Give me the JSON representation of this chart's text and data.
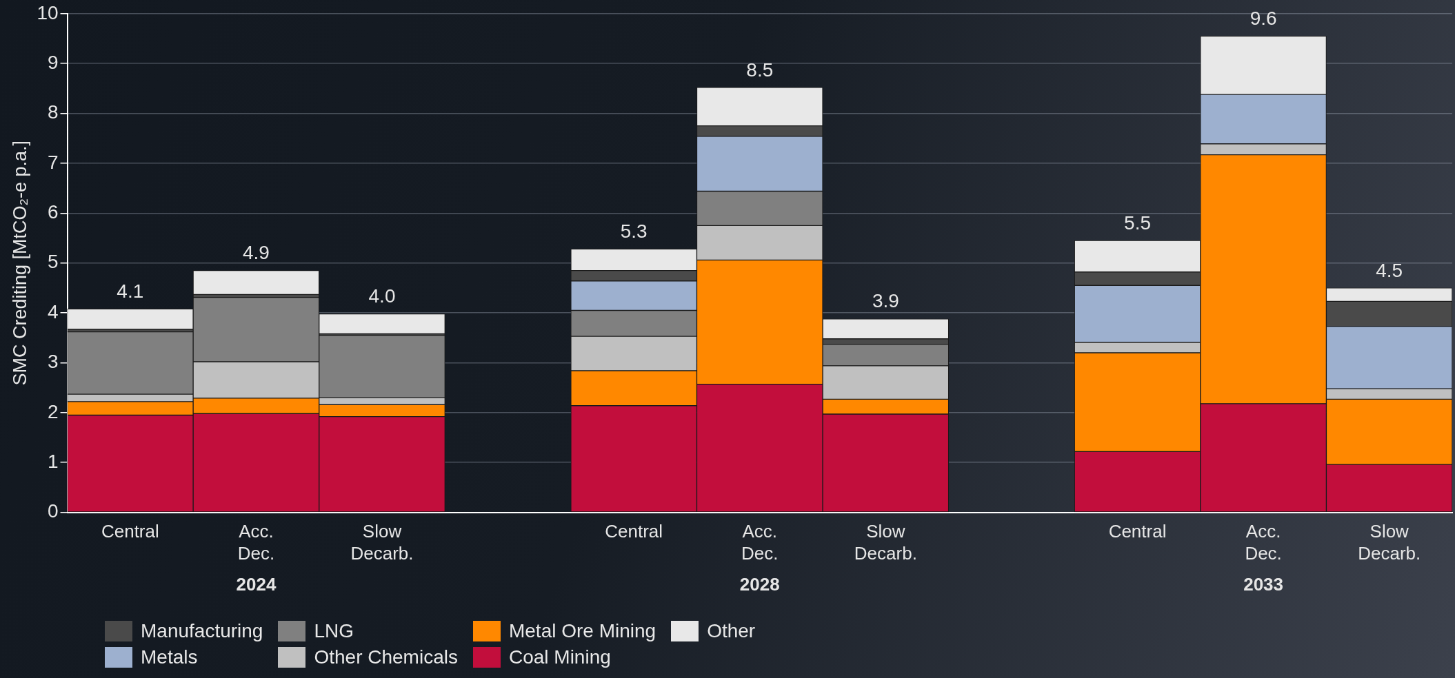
{
  "chart_data": {
    "type": "bar",
    "stacked": true,
    "ylabel": "SMC Crediting [MtCO₂-e p.a.]",
    "categories": [
      "Central",
      "Acc. Dec.",
      "Slow Decarb.",
      null,
      "Central",
      "Acc. Dec.",
      "Slow Decarb.",
      null,
      "Central",
      "Acc. Dec.",
      "Slow Decarb."
    ],
    "series": [
      {
        "name": "Coal Mining",
        "color": "#c20e3c",
        "values": [
          1.95,
          1.98,
          1.92,
          null,
          2.14,
          2.57,
          1.97,
          null,
          1.22,
          2.18,
          0.96
        ]
      },
      {
        "name": "Metal Ore Mining",
        "color": "#ff8800",
        "values": [
          0.27,
          0.31,
          0.24,
          null,
          0.7,
          2.49,
          0.3,
          null,
          1.98,
          4.99,
          1.31
        ]
      },
      {
        "name": "Other Chemicals",
        "color": "#c0c0c0",
        "values": [
          0.15,
          0.73,
          0.14,
          null,
          0.69,
          0.69,
          0.67,
          null,
          0.21,
          0.22,
          0.21
        ]
      },
      {
        "name": "LNG",
        "color": "#808080",
        "values": [
          1.25,
          1.29,
          1.25,
          null,
          0.52,
          0.69,
          0.43,
          null,
          0,
          0,
          0
        ]
      },
      {
        "name": "Metals",
        "color": "#9db0cf",
        "values": [
          0,
          0,
          0,
          null,
          0.59,
          1.1,
          0,
          null,
          1.14,
          0.99,
          1.25
        ]
      },
      {
        "name": "Manufacturing",
        "color": "#4a4a4a",
        "values": [
          0.05,
          0.06,
          0.03,
          null,
          0.21,
          0.21,
          0.11,
          null,
          0.27,
          0,
          0.5
        ]
      },
      {
        "name": "Other",
        "color": "#e8e8e8",
        "values": [
          0.41,
          0.48,
          0.4,
          null,
          0.43,
          0.77,
          0.4,
          null,
          0.63,
          1.17,
          0.27
        ]
      }
    ],
    "totals": [
      "4.1",
      "4.9",
      "4.0",
      null,
      "5.3",
      "8.5",
      "3.9",
      null,
      "5.5",
      "9.6",
      "4.5"
    ],
    "annotations": [
      "2024",
      "2028",
      "2033"
    ],
    "ylim": [
      0,
      10
    ],
    "yticks": [
      0,
      1,
      2,
      3,
      4,
      5,
      6,
      7,
      8,
      9,
      10
    ],
    "grid": "y",
    "legend": "bottom left"
  }
}
